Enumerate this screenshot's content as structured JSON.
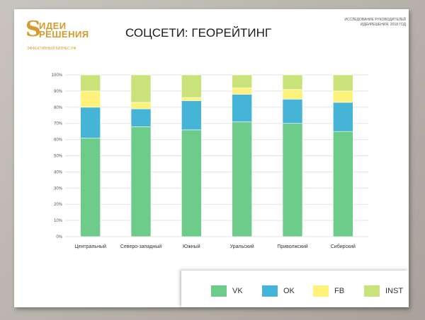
{
  "logo": {
    "mark": "S",
    "line1": "ИДЕИ",
    "line2": "РЕШЕНИЯ",
    "tagline": "ЭФФЕКТИВНЫЙ БИЗНЕС.РФ"
  },
  "header": {
    "title": "СОЦСЕТИ: ГЕОРЕЙТИНГ",
    "note": "ИССЛЕДОВАНИЕ РУКОВОДИТЕЛЕЙ ИДЕИРЕШЕНИЯ, 2018 ГОД"
  },
  "colors": {
    "VK": "#6dcc8a",
    "OK": "#46b4d6",
    "FB": "#fff27a",
    "INST": "#c9e37a",
    "accent": "#d79a2c"
  },
  "chart_data": {
    "type": "bar",
    "stacked": true,
    "title": "",
    "xlabel": "",
    "ylabel": "",
    "ylim": [
      0,
      100
    ],
    "y_ticks": [
      "0%",
      "10%",
      "20%",
      "30%",
      "40%",
      "50%",
      "60%",
      "70%",
      "80%",
      "90%",
      "100%"
    ],
    "grid": true,
    "legend_position": "bottom-right",
    "categories": [
      "Центральный",
      "Северо-западный",
      "Южный",
      "Уральский",
      "Приволжский",
      "Сибирский"
    ],
    "series": [
      {
        "name": "VK",
        "values": [
          61,
          68,
          66,
          71,
          70,
          65
        ]
      },
      {
        "name": "OK",
        "values": [
          19,
          11,
          18,
          17,
          15,
          18
        ]
      },
      {
        "name": "FB",
        "values": [
          10,
          4,
          2,
          4,
          6,
          7
        ]
      },
      {
        "name": "INST",
        "values": [
          10,
          17,
          14,
          8,
          9,
          10
        ]
      }
    ]
  }
}
